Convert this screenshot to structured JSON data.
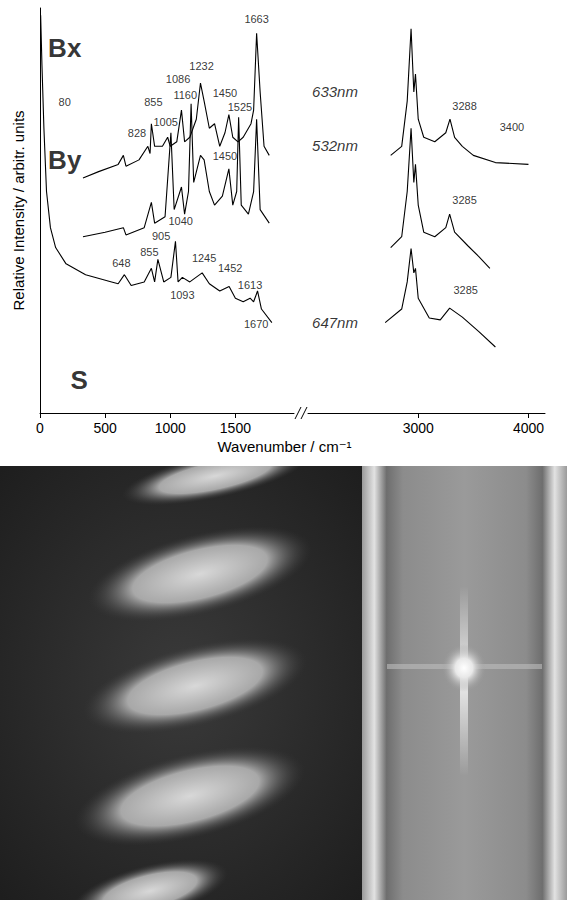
{
  "chart_data": {
    "type": "line",
    "xlabel": "Wavenumber / cm⁻¹",
    "ylabel": "Relative Intensity / arbitr. units",
    "xlim": [
      [
        0,
        1950
      ],
      [
        2000,
        4150
      ]
    ],
    "xticks": [
      [
        0,
        500,
        1000,
        1500
      ],
      [
        3000,
        4000
      ]
    ],
    "ylim": [
      -10,
      102
    ],
    "grid": false,
    "tick_labels": "x",
    "series": [
      {
        "name": "Bx",
        "color": "#000000",
        "x": [
          330,
          450,
          600,
          640,
          660,
          760,
          828,
          845,
          855,
          880,
          940,
          980,
          1000,
          1050,
          1086,
          1110,
          1150,
          1200,
          1232,
          1260,
          1300,
          1340,
          1380,
          1420,
          1450,
          1480,
          1520,
          1560,
          1600,
          1620,
          1640,
          1663,
          1690,
          1720,
          1760,
          2750,
          2850,
          2900,
          2935,
          2960,
          2975,
          3000,
          3050,
          3150,
          3250,
          3288,
          3330,
          3400,
          3500,
          3700,
          4000
        ],
        "values": [
          55,
          56.75,
          58.75,
          61.25,
          58.25,
          60,
          63.75,
          61.75,
          70,
          63.75,
          63.75,
          66.25,
          63.75,
          65,
          73.75,
          65,
          66.25,
          71.25,
          81.25,
          76.25,
          68.75,
          70,
          63.75,
          67.5,
          72.5,
          66.25,
          65,
          66.25,
          68.75,
          70,
          73.75,
          95,
          78.75,
          63.75,
          61.25,
          61.25,
          63.75,
          76.25,
          96.25,
          78.75,
          83.75,
          71.25,
          66.25,
          65,
          67.5,
          71.25,
          66.25,
          63.75,
          61.25,
          59.25,
          58.75
        ]
      },
      {
        "name": "By",
        "color": "#000000",
        "x": [
          330,
          500,
          640,
          660,
          800,
          855,
          880,
          960,
          1005,
          1030,
          1086,
          1110,
          1140,
          1160,
          1180,
          1232,
          1260,
          1300,
          1340,
          1400,
          1450,
          1480,
          1510,
          1525,
          1545,
          1600,
          1640,
          1663,
          1690,
          1760,
          2750,
          2850,
          2900,
          2935,
          2960,
          2975,
          3000,
          3050,
          3150,
          3250,
          3285,
          3330,
          3450,
          3550,
          3650
        ],
        "values": [
          38.75,
          40,
          41.25,
          39.25,
          41.25,
          48.25,
          42.5,
          44.25,
          67.5,
          46.25,
          52.5,
          45,
          51.25,
          75.5,
          53.75,
          61.25,
          60,
          51.25,
          47.5,
          50,
          57.5,
          47.5,
          51.25,
          71.75,
          47.5,
          45,
          51.25,
          71.25,
          46.25,
          42.5,
          35.75,
          38.75,
          51.25,
          68.75,
          53.75,
          58.75,
          47.5,
          40,
          38.75,
          41.25,
          45,
          40,
          36.25,
          33.25,
          30
        ]
      },
      {
        "name": "S",
        "color": "#000000",
        "x": [
          5,
          15,
          30,
          50,
          80,
          120,
          200,
          350,
          550,
          600,
          648,
          700,
          800,
          855,
          880,
          905,
          950,
          1005,
          1040,
          1060,
          1093,
          1150,
          1245,
          1300,
          1380,
          1452,
          1500,
          1560,
          1613,
          1640,
          1670,
          1700,
          1780,
          2700,
          2850,
          2900,
          2935,
          2960,
          2975,
          3000,
          3100,
          3200,
          3285,
          3400,
          3550,
          3700
        ],
        "values": [
          100,
          86.25,
          68.75,
          51.25,
          41.25,
          35.75,
          31.25,
          28.25,
          26.25,
          25.75,
          28.25,
          25.25,
          26.25,
          30,
          26.25,
          32.5,
          26.25,
          27.5,
          37.5,
          26.25,
          27.5,
          26.25,
          28.75,
          25.75,
          23.75,
          25,
          21.75,
          20.75,
          21.75,
          20.75,
          23.75,
          18.75,
          15,
          15,
          18.75,
          26.25,
          35.5,
          28.75,
          30,
          21.75,
          16.25,
          15.75,
          19,
          16.5,
          12.5,
          8.25
        ]
      }
    ],
    "annotations": [
      {
        "text": "Bx",
        "x": 190,
        "y": 91,
        "kind": "series"
      },
      {
        "text": "By",
        "x": 190,
        "y": 60,
        "kind": "series"
      },
      {
        "text": "S",
        "x": 300,
        "y": -1,
        "kind": "series"
      },
      {
        "text": "633nm",
        "x": 2245,
        "y": 79,
        "kind": "laser"
      },
      {
        "text": "532nm",
        "x": 2245,
        "y": 64,
        "kind": "laser"
      },
      {
        "text": "647nm",
        "x": 2245,
        "y": 15,
        "kind": "laser"
      },
      {
        "text": "80",
        "x": 190,
        "y": 76,
        "kind": "peak"
      },
      {
        "text": "828",
        "x": 745,
        "y": 67.5,
        "kind": "peak"
      },
      {
        "text": "855",
        "x": 870,
        "y": 76,
        "kind": "peak"
      },
      {
        "text": "1086",
        "x": 1060,
        "y": 82.5,
        "kind": "peak"
      },
      {
        "text": "1232",
        "x": 1240,
        "y": 86,
        "kind": "peak"
      },
      {
        "text": "1450",
        "x": 1420,
        "y": 78.5,
        "kind": "peak"
      },
      {
        "text": "1663",
        "x": 1663,
        "y": 99,
        "kind": "peak"
      },
      {
        "text": "3288",
        "x": 3420,
        "y": 75,
        "kind": "peak"
      },
      {
        "text": "3400",
        "x": 3850,
        "y": 69,
        "kind": "peak"
      },
      {
        "text": "1005",
        "x": 965,
        "y": 70.5,
        "kind": "peak"
      },
      {
        "text": "1160",
        "x": 1115,
        "y": 78,
        "kind": "peak"
      },
      {
        "text": "1450",
        "x": 1420,
        "y": 61,
        "kind": "peak"
      },
      {
        "text": "1525",
        "x": 1535,
        "y": 74.5,
        "kind": "peak"
      },
      {
        "text": "3285",
        "x": 3420,
        "y": 49,
        "kind": "peak"
      },
      {
        "text": "648",
        "x": 625,
        "y": 31.5,
        "kind": "peak"
      },
      {
        "text": "855",
        "x": 840,
        "y": 34.5,
        "kind": "peak"
      },
      {
        "text": "905",
        "x": 930,
        "y": 39,
        "kind": "peak"
      },
      {
        "text": "1040",
        "x": 1080,
        "y": 43,
        "kind": "peak"
      },
      {
        "text": "1093",
        "x": 1093,
        "y": 22.5,
        "kind": "peak"
      },
      {
        "text": "1245",
        "x": 1260,
        "y": 33,
        "kind": "peak"
      },
      {
        "text": "1452",
        "x": 1460,
        "y": 30,
        "kind": "peak"
      },
      {
        "text": "1613",
        "x": 1613,
        "y": 25.5,
        "kind": "peak"
      },
      {
        "text": "1670",
        "x": 1660,
        "y": 14.5,
        "kind": "peak"
      },
      {
        "text": "3285",
        "x": 3430,
        "y": 24,
        "kind": "peak"
      }
    ]
  }
}
